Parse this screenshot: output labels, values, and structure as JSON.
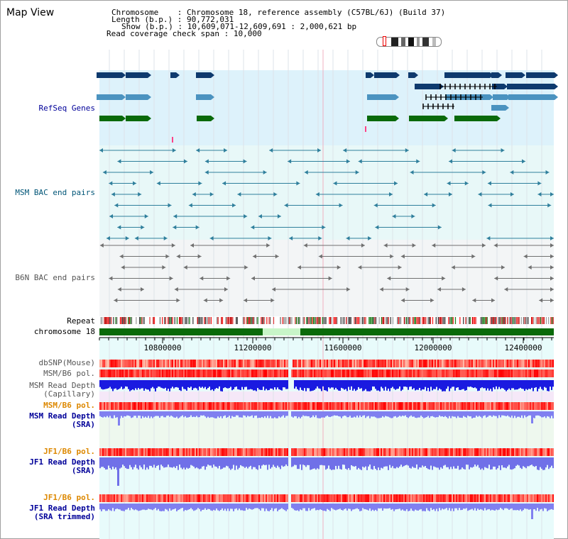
{
  "title": "Map View",
  "info": {
    "chromosome_label": "Chromosome",
    "chromosome_value": "Chromosome 18, reference assembly (C57BL/6J) (Build 37)",
    "length_label": "Length (b.p.)",
    "length_value": "90,772,031",
    "show_label": "Show (b.p.)",
    "show_value": "10,609,071-12,609,691 : 2,000,621 bp",
    "coverage_label": "Read coverage check span",
    "coverage_value": "10,000"
  },
  "tracks": {
    "refseq": "RefSeq Genes",
    "msm_bac": "MSM BAC end pairs",
    "b6n_bac": "B6N BAC end pairs",
    "repeat": "Repeat",
    "chromosome": "chromosome 18",
    "dbsnp": "dbSNP(Mouse)",
    "msm_b6_pol": "MSM/B6 pol.",
    "msm_read_depth_1": "MSM Read Depth",
    "msm_read_depth_1b": "(Capillary)",
    "msm_b6_pol_2": "MSM/B6 pol.",
    "msm_read_depth_2": "MSM Read Depth",
    "msm_read_depth_2b": "(SRA)",
    "jf1_b6_pol": "JF1/B6 pol.",
    "jf1_read_depth": "JF1 Read Depth",
    "jf1_read_depth_b": "(SRA)",
    "jf1_b6_pol_2": "JF1/B6 pol.",
    "jf1_read_depth_trim": "JF1 Read Depth",
    "jf1_read_depth_trim_b": "(SRA trimmed)"
  },
  "axis": {
    "ticks": [
      "10800000",
      "11200000",
      "11600000",
      "12000000",
      "12400000"
    ]
  },
  "colors": {
    "refseq_bg": "#ddf2fb",
    "bac_bg": "#e8f8f8",
    "gene_dark": "#0e3a6e",
    "gene_mid": "#4b93c0",
    "gene_green": "#0a6a0a",
    "msm_line": "#2f7f9c",
    "b6n_line": "#707070",
    "label_blue": "#000099",
    "label_teal": "#005577",
    "label_orange": "#dd8800"
  }
}
